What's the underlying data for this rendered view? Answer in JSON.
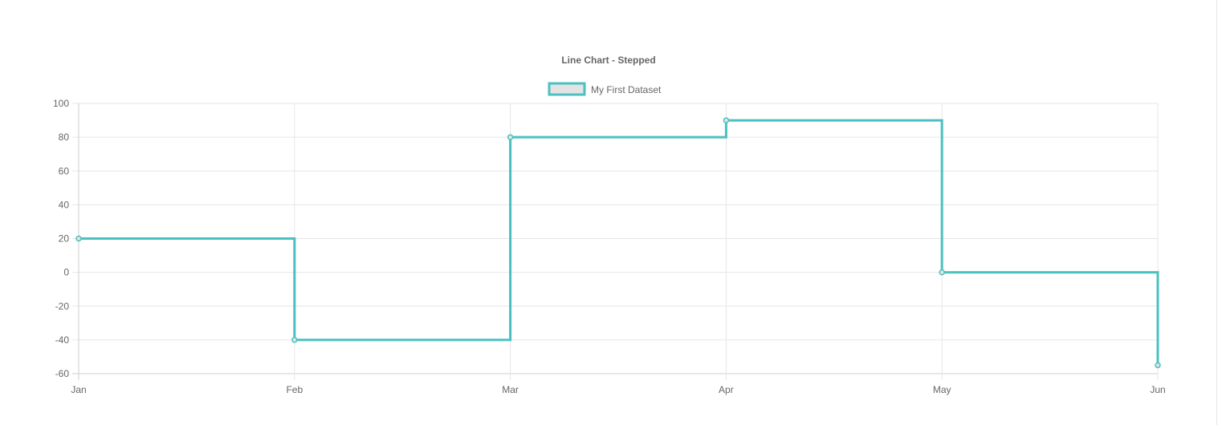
{
  "chart_data": {
    "type": "line",
    "stepped": true,
    "title": "Line Chart - Stepped",
    "categories": [
      "Jan",
      "Feb",
      "Mar",
      "Apr",
      "May",
      "Jun"
    ],
    "series": [
      {
        "name": "My First Dataset",
        "values": [
          20,
          -40,
          80,
          90,
          0,
          -55
        ],
        "color": "#4bc0c0",
        "point_fill": "#e3e3e3"
      }
    ],
    "ylim": [
      -60,
      100
    ],
    "yticks": [
      100,
      80,
      60,
      40,
      20,
      0,
      -20,
      -40,
      -60
    ],
    "grid": true,
    "legend_position": "top"
  }
}
